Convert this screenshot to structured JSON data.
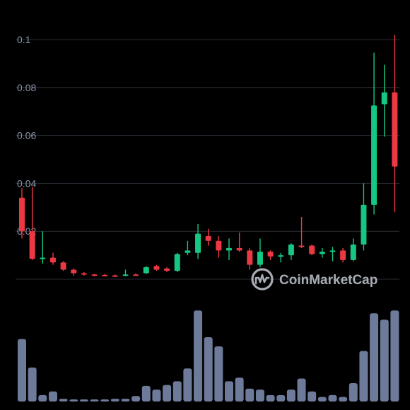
{
  "chart_data": {
    "type": "candlestick",
    "title": "",
    "xlabel": "",
    "ylabel": "",
    "ylim": [
      0,
      0.105
    ],
    "y_ticks": [
      {
        "value": 0.02,
        "label": "0.02"
      },
      {
        "value": 0.04,
        "label": "0.04"
      },
      {
        "value": 0.06,
        "label": "0.06"
      },
      {
        "value": 0.08,
        "label": "0.08"
      },
      {
        "value": 0.1,
        "label": "0.1"
      }
    ],
    "grid": true,
    "colors": {
      "up": "#16c784",
      "down": "#ea3943",
      "volume": "#6d7a99",
      "grid": "#2a2d35",
      "text": "#8a93a8",
      "background": "#000000"
    },
    "candles": [
      {
        "o": 0.034,
        "h": 0.038,
        "l": 0.017,
        "c": 0.02
      },
      {
        "o": 0.02,
        "h": 0.0385,
        "l": 0.008,
        "c": 0.0085
      },
      {
        "o": 0.0085,
        "h": 0.02,
        "l": 0.0065,
        "c": 0.009
      },
      {
        "o": 0.009,
        "h": 0.011,
        "l": 0.006,
        "c": 0.007
      },
      {
        "o": 0.007,
        "h": 0.0075,
        "l": 0.0035,
        "c": 0.004
      },
      {
        "o": 0.004,
        "h": 0.0045,
        "l": 0.0015,
        "c": 0.0025
      },
      {
        "o": 0.0025,
        "h": 0.003,
        "l": 0.0015,
        "c": 0.002
      },
      {
        "o": 0.002,
        "h": 0.0022,
        "l": 0.0012,
        "c": 0.0018
      },
      {
        "o": 0.0018,
        "h": 0.0022,
        "l": 0.0012,
        "c": 0.0016
      },
      {
        "o": 0.0016,
        "h": 0.002,
        "l": 0.001,
        "c": 0.0014
      },
      {
        "o": 0.0015,
        "h": 0.004,
        "l": 0.0012,
        "c": 0.002
      },
      {
        "o": 0.002,
        "h": 0.0025,
        "l": 0.0015,
        "c": 0.0018
      },
      {
        "o": 0.0025,
        "h": 0.0055,
        "l": 0.0022,
        "c": 0.005
      },
      {
        "o": 0.0055,
        "h": 0.006,
        "l": 0.0035,
        "c": 0.004
      },
      {
        "o": 0.0045,
        "h": 0.005,
        "l": 0.003,
        "c": 0.0035
      },
      {
        "o": 0.0035,
        "h": 0.011,
        "l": 0.003,
        "c": 0.0105
      },
      {
        "o": 0.011,
        "h": 0.016,
        "l": 0.01,
        "c": 0.012
      },
      {
        "o": 0.011,
        "h": 0.023,
        "l": 0.0085,
        "c": 0.019
      },
      {
        "o": 0.018,
        "h": 0.021,
        "l": 0.014,
        "c": 0.016
      },
      {
        "o": 0.016,
        "h": 0.018,
        "l": 0.009,
        "c": 0.012
      },
      {
        "o": 0.012,
        "h": 0.017,
        "l": 0.008,
        "c": 0.013
      },
      {
        "o": 0.013,
        "h": 0.0195,
        "l": 0.0115,
        "c": 0.012
      },
      {
        "o": 0.012,
        "h": 0.013,
        "l": 0.004,
        "c": 0.006
      },
      {
        "o": 0.006,
        "h": 0.017,
        "l": 0.005,
        "c": 0.0115
      },
      {
        "o": 0.0115,
        "h": 0.012,
        "l": 0.008,
        "c": 0.0095
      },
      {
        "o": 0.0095,
        "h": 0.011,
        "l": 0.007,
        "c": 0.01
      },
      {
        "o": 0.01,
        "h": 0.015,
        "l": 0.008,
        "c": 0.0145
      },
      {
        "o": 0.014,
        "h": 0.026,
        "l": 0.013,
        "c": 0.0135
      },
      {
        "o": 0.014,
        "h": 0.0145,
        "l": 0.01,
        "c": 0.0105
      },
      {
        "o": 0.0105,
        "h": 0.013,
        "l": 0.009,
        "c": 0.0115
      },
      {
        "o": 0.0115,
        "h": 0.0135,
        "l": 0.0075,
        "c": 0.012
      },
      {
        "o": 0.012,
        "h": 0.013,
        "l": 0.007,
        "c": 0.008
      },
      {
        "o": 0.008,
        "h": 0.017,
        "l": 0.0075,
        "c": 0.0145
      },
      {
        "o": 0.0145,
        "h": 0.04,
        "l": 0.012,
        "c": 0.031
      },
      {
        "o": 0.031,
        "h": 0.0945,
        "l": 0.027,
        "c": 0.0725
      },
      {
        "o": 0.073,
        "h": 0.0895,
        "l": 0.0595,
        "c": 0.078
      },
      {
        "o": 0.078,
        "h": 0.102,
        "l": 0.028,
        "c": 0.047
      }
    ],
    "volume": [
      0.68,
      0.37,
      0.07,
      0.11,
      0.03,
      0.01,
      0.01,
      0.01,
      0.02,
      0.03,
      0.03,
      0.06,
      0.17,
      0.13,
      0.18,
      0.22,
      0.36,
      0.99,
      0.7,
      0.6,
      0.22,
      0.26,
      0.14,
      0.13,
      0.07,
      0.07,
      0.13,
      0.25,
      0.11,
      0.05,
      0.07,
      0.05,
      0.2,
      0.55,
      0.96,
      0.89,
      0.99
    ]
  },
  "watermark": {
    "text": "CoinMarketCap",
    "icon": "coinmarketcap-logo-icon"
  }
}
